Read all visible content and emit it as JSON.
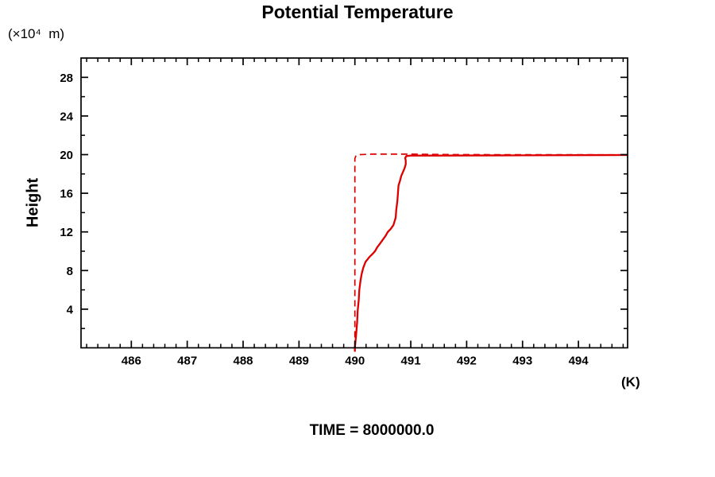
{
  "title": "Potential Temperature",
  "y_axis": {
    "label": "Height",
    "units": "(×10⁴  m)"
  },
  "x_axis": {
    "units": "(K)"
  },
  "caption": "TIME = 8000000.0",
  "colors": {
    "line": "#dd0000",
    "axis": "#000000",
    "background": "#ffffff"
  },
  "chart_data": {
    "type": "line",
    "title": "Potential Temperature",
    "xlabel": "(K)",
    "ylabel": "Height (×10⁴ m)",
    "xlim": [
      485.1,
      494.88
    ],
    "ylim": [
      0,
      30
    ],
    "grid": false,
    "x_major_ticks": [
      486,
      487,
      488,
      489,
      490,
      491,
      492,
      493,
      494
    ],
    "x_tick_labels": [
      "486",
      "487",
      "488",
      "489",
      "490",
      "491",
      "492",
      "493",
      "494"
    ],
    "x_minor_step": 0.2,
    "y_major_ticks": [
      4,
      8,
      12,
      16,
      20,
      24,
      28
    ],
    "y_tick_labels": [
      "4",
      "8",
      "12",
      "16",
      "20",
      "24",
      "28"
    ],
    "y_minor_step": 2,
    "series": [
      {
        "name": "potential-temperature-profile",
        "style": "solid",
        "color": "#dd0000",
        "points": [
          [
            490.0,
            -0.4
          ],
          [
            490.0,
            0.0
          ],
          [
            490.02,
            1.2
          ],
          [
            490.04,
            2.6
          ],
          [
            490.05,
            3.8
          ],
          [
            490.07,
            5.0
          ],
          [
            490.08,
            6.0
          ],
          [
            490.1,
            6.9
          ],
          [
            490.12,
            7.6
          ],
          [
            490.15,
            8.3
          ],
          [
            490.19,
            8.9
          ],
          [
            490.26,
            9.4
          ],
          [
            490.33,
            9.8
          ],
          [
            490.36,
            10.0
          ],
          [
            490.4,
            10.4
          ],
          [
            490.45,
            10.8
          ],
          [
            490.5,
            11.2
          ],
          [
            490.55,
            11.6
          ],
          [
            490.59,
            12.0
          ],
          [
            490.64,
            12.3
          ],
          [
            490.69,
            12.7
          ],
          [
            490.71,
            13.1
          ],
          [
            490.73,
            13.5
          ],
          [
            490.74,
            14.3
          ],
          [
            490.76,
            15.2
          ],
          [
            490.77,
            16.0
          ],
          [
            490.78,
            16.8
          ],
          [
            490.81,
            17.35
          ],
          [
            490.83,
            17.8
          ],
          [
            490.86,
            18.2
          ],
          [
            490.89,
            18.6
          ],
          [
            490.91,
            19.0
          ],
          [
            490.91,
            19.4
          ],
          [
            490.9,
            19.65
          ],
          [
            490.92,
            19.85
          ],
          [
            491.0,
            19.9
          ],
          [
            491.5,
            19.9
          ],
          [
            493.0,
            19.93
          ],
          [
            494.88,
            19.96
          ]
        ]
      },
      {
        "name": "reference-profile",
        "style": "dashed",
        "color": "#dd0000",
        "points": [
          [
            490.0,
            0.0
          ],
          [
            490.0,
            19.6
          ],
          [
            490.02,
            19.9
          ],
          [
            490.08,
            20.0
          ],
          [
            490.3,
            20.05
          ],
          [
            491.0,
            20.05
          ],
          [
            491.8,
            20.0
          ],
          [
            494.88,
            19.98
          ]
        ]
      }
    ]
  }
}
